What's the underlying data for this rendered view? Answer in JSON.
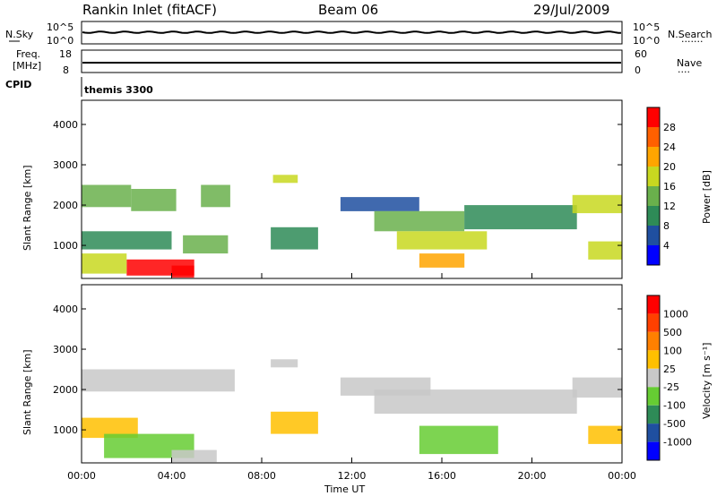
{
  "header": {
    "title_left": "Rankin Inlet (fitACF)",
    "title_center": "Beam 06",
    "title_right": "29/Jul/2009"
  },
  "sky_panel": {
    "left_label": "N.Sky",
    "right_label": "N.Search",
    "left_ticks": [
      "10^5",
      "10^0"
    ],
    "right_ticks": [
      "10^5",
      "10^0"
    ]
  },
  "freq_panel": {
    "left_label_1": "Freq.",
    "left_label_2": "[MHz]",
    "right_label": "Nave",
    "left_ticks": [
      "18",
      "8"
    ],
    "right_ticks": [
      "60",
      "0"
    ]
  },
  "cpid": {
    "label": "CPID",
    "value": "themis 3300"
  },
  "power_panel": {
    "ylabel": "Slant Range [km]",
    "colorbar_label": "Power [dB]",
    "colorbar_ticks": [
      "28",
      "24",
      "20",
      "16",
      "12",
      "8",
      "4"
    ],
    "colors": [
      "#0000ff",
      "#1f4fa0",
      "#2e8b57",
      "#6ab04c",
      "#c8d820",
      "#ffa500",
      "#ff6000",
      "#ff0000"
    ]
  },
  "velocity_panel": {
    "ylabel": "Slant Range [km]",
    "colorbar_label": "Velocity [m s⁻¹]",
    "colorbar_ticks": [
      "1000",
      "500",
      "100",
      "25",
      "-25",
      "-100",
      "-500",
      "-1000"
    ],
    "colors": [
      "#0000ff",
      "#1f4fa0",
      "#2e8b57",
      "#66cc33",
      "#c8c8c8",
      "#ffc000",
      "#ff8000",
      "#ff4000",
      "#ff0000"
    ]
  },
  "xaxis": {
    "label": "Time UT",
    "ticks": [
      "00:00",
      "04:00",
      "08:00",
      "12:00",
      "16:00",
      "20:00",
      "00:00"
    ]
  },
  "yaxis_ticks": [
    "1000",
    "2000",
    "3000",
    "4000"
  ],
  "chart_data": {
    "type": "heatmap",
    "title": "Rankin Inlet (fitACF)",
    "subtitle": "Beam 06 - 29/Jul/2009",
    "xlabel": "Time UT",
    "ylabel": "Slant Range [km]",
    "xlim": [
      0,
      24
    ],
    "ylim": [
      180,
      4600
    ],
    "ysub_ticks": [
      1000,
      2000,
      3000,
      4000
    ],
    "series": [
      {
        "name": "Power [dB]",
        "clim": [
          0,
          30
        ],
        "regions": [
          {
            "t": [
              0.0,
              2.2
            ],
            "r": [
              1950,
              2500
            ],
            "v": 12
          },
          {
            "t": [
              2.2,
              4.2
            ],
            "r": [
              1850,
              2400
            ],
            "v": 14
          },
          {
            "t": [
              5.3,
              6.6
            ],
            "r": [
              1950,
              2500
            ],
            "v": 13
          },
          {
            "t": [
              0.0,
              4.0
            ],
            "r": [
              900,
              1350
            ],
            "v": 10
          },
          {
            "t": [
              4.5,
              6.5
            ],
            "r": [
              800,
              1250
            ],
            "v": 12
          },
          {
            "t": [
              2.0,
              5.0
            ],
            "r": [
              250,
              650
            ],
            "v": 27
          },
          {
            "t": [
              4.0,
              5.0
            ],
            "r": [
              200,
              500
            ],
            "v": 30
          },
          {
            "t": [
              0.0,
              2.0
            ],
            "r": [
              300,
              800
            ],
            "v": 18
          },
          {
            "t": [
              8.5,
              9.6
            ],
            "r": [
              2550,
              2750
            ],
            "v": 18
          },
          {
            "t": [
              8.4,
              10.5
            ],
            "r": [
              900,
              1450
            ],
            "v": 8
          },
          {
            "t": [
              11.5,
              15.0
            ],
            "r": [
              1850,
              2200
            ],
            "v": 6
          },
          {
            "t": [
              13.0,
              17.0
            ],
            "r": [
              1350,
              1850
            ],
            "v": 14
          },
          {
            "t": [
              14.0,
              18.0
            ],
            "r": [
              900,
              1350
            ],
            "v": 16
          },
          {
            "t": [
              15.0,
              17.0
            ],
            "r": [
              450,
              800
            ],
            "v": 20
          },
          {
            "t": [
              17.0,
              22.0
            ],
            "r": [
              1400,
              2000
            ],
            "v": 11
          },
          {
            "t": [
              21.8,
              24.0
            ],
            "r": [
              1800,
              2250
            ],
            "v": 17
          },
          {
            "t": [
              22.5,
              24.0
            ],
            "r": [
              650,
              1100
            ],
            "v": 15
          }
        ]
      },
      {
        "name": "Velocity [m s-1]",
        "clim": [
          -1000,
          1000
        ],
        "regions": [
          {
            "t": [
              0.0,
              6.8
            ],
            "r": [
              1950,
              2500
            ],
            "v": 0
          },
          {
            "t": [
              0.0,
              2.5
            ],
            "r": [
              800,
              1300
            ],
            "v": 150
          },
          {
            "t": [
              1.0,
              5.0
            ],
            "r": [
              300,
              900
            ],
            "v": -150
          },
          {
            "t": [
              4.0,
              6.0
            ],
            "r": [
              200,
              500
            ],
            "v": 50
          },
          {
            "t": [
              8.4,
              9.6
            ],
            "r": [
              2550,
              2750
            ],
            "v": -80
          },
          {
            "t": [
              8.4,
              10.5
            ],
            "r": [
              900,
              1450
            ],
            "v": 250
          },
          {
            "t": [
              11.5,
              15.5
            ],
            "r": [
              1850,
              2300
            ],
            "v": 0
          },
          {
            "t": [
              13.0,
              22.0
            ],
            "r": [
              1400,
              2000
            ],
            "v": 0
          },
          {
            "t": [
              15.0,
              18.5
            ],
            "r": [
              400,
              1100
            ],
            "v": -200
          },
          {
            "t": [
              21.8,
              24.0
            ],
            "r": [
              1800,
              2300
            ],
            "v": 0
          },
          {
            "t": [
              22.5,
              24.0
            ],
            "r": [
              650,
              1100
            ],
            "v": 200
          }
        ]
      }
    ]
  }
}
